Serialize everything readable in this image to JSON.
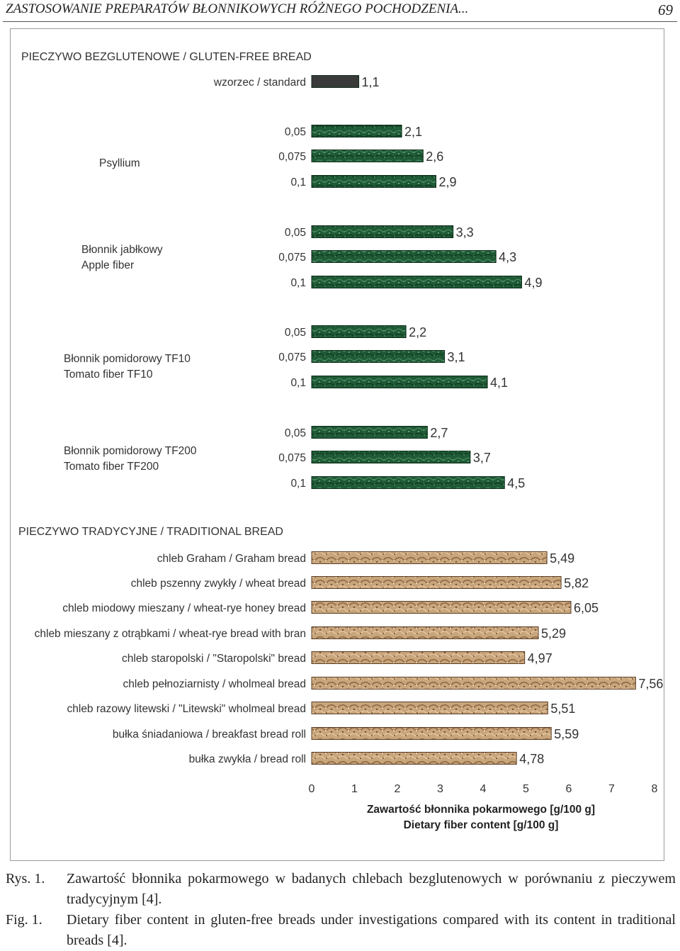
{
  "running_head": {
    "title": "ZASTOSOWANIE PREPARATÓW BŁONNIKOWYCH RÓŻNEGO POCHODZENIA...",
    "page_number": "69"
  },
  "chart_data": {
    "type": "bar",
    "orientation": "horizontal",
    "xlim": [
      0,
      8
    ],
    "x_ticks": [
      "0",
      "1",
      "2",
      "3",
      "4",
      "5",
      "6",
      "7",
      "8"
    ],
    "xlabel_lines": [
      "Zawartość błonnika pokarmowego [g/100 g]",
      "Dietary fiber content [g/100 g]"
    ],
    "grid": false,
    "sections": [
      {
        "title": "PIECZYWO BEZGLUTENOWE / GLUTEN-FREE BREAD",
        "bar_color": "#1e5a36",
        "groups": [
          {
            "label_lines": [],
            "bars": [
              {
                "label": "wzorzec / standard",
                "value": 1.1,
                "value_label": "1,1",
                "color": "#3a3a3a"
              }
            ]
          },
          {
            "label_lines": [
              "Psyllium"
            ],
            "bars": [
              {
                "label": "0,05",
                "value": 2.1,
                "value_label": "2,1"
              },
              {
                "label": "0,075",
                "value": 2.6,
                "value_label": "2,6"
              },
              {
                "label": "0,1",
                "value": 2.9,
                "value_label": "2,9"
              }
            ]
          },
          {
            "label_lines": [
              "Błonnik jabłkowy",
              "Apple fiber"
            ],
            "bars": [
              {
                "label": "0,05",
                "value": 3.3,
                "value_label": "3,3"
              },
              {
                "label": "0,075",
                "value": 4.3,
                "value_label": "4,3"
              },
              {
                "label": "0,1",
                "value": 4.9,
                "value_label": "4,9"
              }
            ]
          },
          {
            "label_lines": [
              "Błonnik pomidorowy TF10",
              "Tomato fiber TF10"
            ],
            "bars": [
              {
                "label": "0,05",
                "value": 2.2,
                "value_label": "2,2"
              },
              {
                "label": "0,075",
                "value": 3.1,
                "value_label": "3,1"
              },
              {
                "label": "0,1",
                "value": 4.1,
                "value_label": "4,1"
              }
            ]
          },
          {
            "label_lines": [
              "Błonnik pomidorowy TF200",
              "Tomato fiber TF200"
            ],
            "bars": [
              {
                "label": "0,05",
                "value": 2.7,
                "value_label": "2,7"
              },
              {
                "label": "0,075",
                "value": 3.7,
                "value_label": "3,7"
              },
              {
                "label": "0,1",
                "value": 4.5,
                "value_label": "4,5"
              }
            ]
          }
        ]
      },
      {
        "title": "PIECZYWO TRADYCYJNE / TRADITIONAL BREAD",
        "bar_color": "#b08a63",
        "groups": [
          {
            "label_lines": [],
            "bars": [
              {
                "label": "chleb Graham / Graham bread",
                "value": 5.49,
                "value_label": "5,49"
              },
              {
                "label": "chleb pszenny zwykły / wheat bread",
                "value": 5.82,
                "value_label": "5,82"
              },
              {
                "label": "chleb miodowy mieszany / wheat-rye honey bread",
                "value": 6.05,
                "value_label": "6,05"
              },
              {
                "label": "chleb mieszany z otrąbkami / wheat-rye bread with bran",
                "value": 5.29,
                "value_label": "5,29"
              },
              {
                "label": "chleb staropolski / \"Staropolski\" bread",
                "value": 4.97,
                "value_label": "4,97"
              },
              {
                "label": "chleb pełnoziarnisty / wholmeal bread",
                "value": 7.56,
                "value_label": "7,56"
              },
              {
                "label": "chleb razowy litewski / \"Litewski\" wholmeal bread",
                "value": 5.51,
                "value_label": "5,51"
              },
              {
                "label": "bułka śniadaniowa / breakfast bread roll",
                "value": 5.59,
                "value_label": "5,59"
              },
              {
                "label": "bułka zwykła / bread roll",
                "value": 4.78,
                "value_label": "4,78"
              }
            ]
          }
        ]
      }
    ]
  },
  "caption": {
    "pl_label": "Rys. 1.",
    "pl_text": "Zawartość błonnika pokarmowego w badanych chlebach bezglutenowych w porównaniu z pieczywem tradycyjnym [4].",
    "en_label": "Fig. 1.",
    "en_text": "Dietary fiber content in gluten-free breads under investigations compared with its content in traditional breads [4]."
  }
}
